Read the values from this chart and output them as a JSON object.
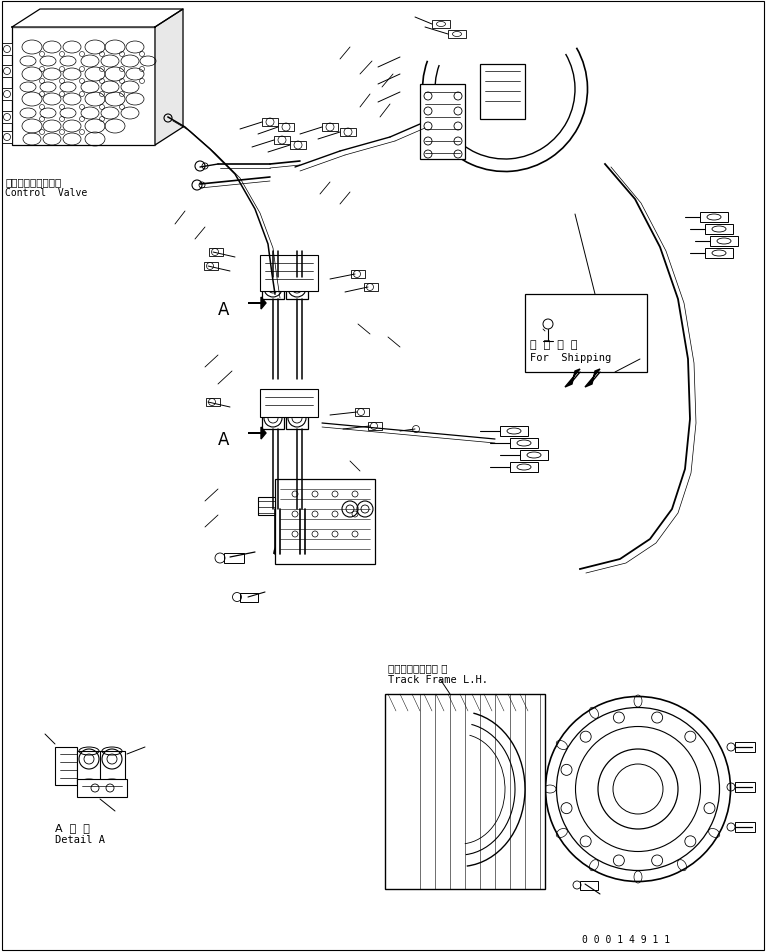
{
  "bg_color": "#ffffff",
  "line_color": "#000000",
  "fig_width": 7.66,
  "fig_height": 9.53,
  "dpi": 100,
  "labels": {
    "control_valve_jp": "コントロールバルブ",
    "control_valve_en": "Control  Valve",
    "for_shipping_jp": "運  携  部  品",
    "for_shipping_en": "For  Shipping",
    "track_frame_jp": "トラックフレーム 左",
    "track_frame_en": "Track Frame L.H.",
    "detail_a_jp": "A  詳  細",
    "detail_a_en": "Detail A",
    "part_number": "0 0 0 1 4 9 1 1",
    "label_a1": "A",
    "label_a2": "A"
  }
}
